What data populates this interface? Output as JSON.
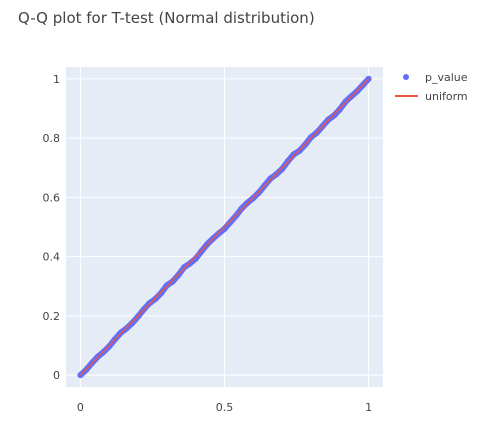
{
  "chart_data": {
    "type": "scatter",
    "title": "Q-Q plot for T-test (Normal distribution)",
    "xlabel": "",
    "ylabel": "",
    "xlim": [
      -0.05,
      1.05
    ],
    "ylim": [
      -0.04,
      1.04
    ],
    "x_ticks": [
      0,
      0.5,
      1
    ],
    "x_tick_labels": [
      "0",
      "0.5",
      "1"
    ],
    "y_ticks": [
      0,
      0.2,
      0.4,
      0.6,
      0.8,
      1
    ],
    "y_tick_labels": [
      "0",
      "0.2",
      "0.4",
      "0.6",
      "0.8",
      "1"
    ],
    "grid": true,
    "legend": "top-right",
    "series": [
      {
        "name": "p_value",
        "kind": "markers",
        "color": "#636efa",
        "x": [
          0.0,
          0.02,
          0.04,
          0.06,
          0.08,
          0.1,
          0.12,
          0.14,
          0.16,
          0.18,
          0.2,
          0.22,
          0.24,
          0.26,
          0.28,
          0.3,
          0.32,
          0.34,
          0.36,
          0.38,
          0.4,
          0.42,
          0.44,
          0.46,
          0.48,
          0.5,
          0.52,
          0.54,
          0.56,
          0.58,
          0.6,
          0.62,
          0.64,
          0.66,
          0.68,
          0.7,
          0.72,
          0.74,
          0.76,
          0.78,
          0.8,
          0.82,
          0.84,
          0.86,
          0.88,
          0.9,
          0.92,
          0.94,
          0.96,
          0.98,
          1.0
        ],
        "y": [
          0.0,
          0.018,
          0.041,
          0.062,
          0.078,
          0.097,
          0.121,
          0.143,
          0.158,
          0.176,
          0.198,
          0.222,
          0.243,
          0.257,
          0.277,
          0.303,
          0.316,
          0.338,
          0.364,
          0.377,
          0.393,
          0.418,
          0.442,
          0.461,
          0.478,
          0.494,
          0.516,
          0.538,
          0.563,
          0.582,
          0.598,
          0.617,
          0.641,
          0.664,
          0.678,
          0.696,
          0.722,
          0.745,
          0.757,
          0.778,
          0.803,
          0.818,
          0.84,
          0.862,
          0.876,
          0.897,
          0.923,
          0.941,
          0.958,
          0.979,
          1.0
        ]
      },
      {
        "name": "uniform",
        "kind": "line",
        "color": "#ef553b",
        "x": [
          0,
          1
        ],
        "y": [
          0,
          1
        ]
      }
    ]
  }
}
